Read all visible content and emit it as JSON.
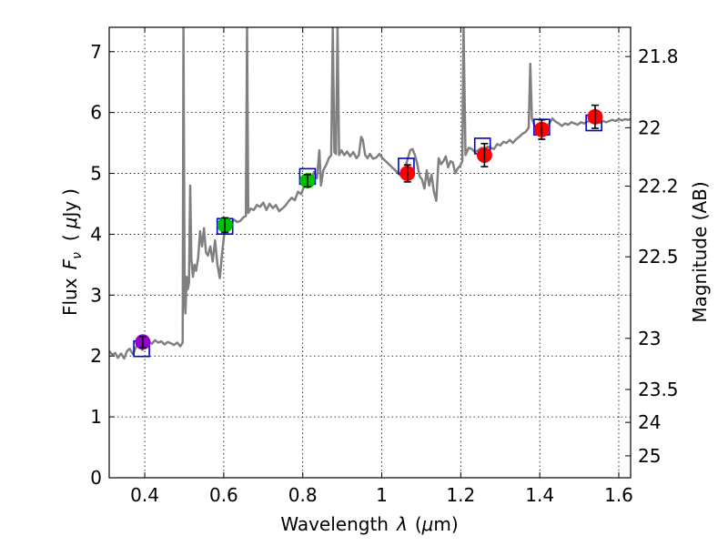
{
  "chart_data": {
    "type": "scatter",
    "xlabel_text": "Wavelength",
    "xlabel_symbol": "λ",
    "xlabel_unit_open": "(",
    "xlabel_unit_mu": "μ",
    "xlabel_unit_rest": "m)",
    "ylabel_text": "Flux",
    "ylabel_symbol_main": "F",
    "ylabel_symbol_sub": "ν",
    "ylabel_unit_open": "(",
    "ylabel_unit_mu": "μ",
    "ylabel_unit_rest": "Jy",
    "ylabel_unit_close": ")",
    "ylabel_right": "Magnitude (AB)",
    "xlim": [
      0.31,
      1.63
    ],
    "ylim": [
      0,
      7.4
    ],
    "x_ticks": [
      0.4,
      0.6,
      0.8,
      1,
      1.2,
      1.4,
      1.6
    ],
    "x_tick_labels": [
      "0.4",
      "0.6",
      "0.8",
      "1",
      "1.2",
      "1.4",
      "1.6"
    ],
    "y_ticks": [
      0,
      1,
      2,
      3,
      4,
      5,
      6,
      7
    ],
    "y_tick_labels": [
      "0",
      "1",
      "2",
      "3",
      "4",
      "5",
      "6",
      "7"
    ],
    "mag_ticks": [
      {
        "label": "21.8",
        "flux": 6.92
      },
      {
        "label": "22",
        "flux": 5.75
      },
      {
        "label": "22.2",
        "flux": 4.79
      },
      {
        "label": "22.5",
        "flux": 3.63
      },
      {
        "label": "23",
        "flux": 2.29
      },
      {
        "label": "23.5",
        "flux": 1.45
      },
      {
        "label": "24",
        "flux": 0.91
      },
      {
        "label": "25",
        "flux": 0.36
      }
    ],
    "grid": true,
    "observed": [
      {
        "x": 0.395,
        "y": 2.23,
        "err": 0.09,
        "color": "#9400d3"
      },
      {
        "x": 0.603,
        "y": 4.15,
        "err": 0.12,
        "color": "#00c000"
      },
      {
        "x": 0.812,
        "y": 4.88,
        "err": 0.1,
        "color": "#00c000"
      },
      {
        "x": 1.065,
        "y": 5.0,
        "err": 0.14,
        "color": "#ff0000"
      },
      {
        "x": 1.26,
        "y": 5.3,
        "err": 0.19,
        "color": "#ff0000"
      },
      {
        "x": 1.405,
        "y": 5.72,
        "err": 0.16,
        "color": "#ff0000"
      },
      {
        "x": 1.54,
        "y": 5.93,
        "err": 0.19,
        "color": "#ff0000"
      }
    ],
    "model_photometry": [
      {
        "x": 0.392,
        "y": 2.12
      },
      {
        "x": 0.603,
        "y": 4.13
      },
      {
        "x": 0.812,
        "y": 4.95
      },
      {
        "x": 1.062,
        "y": 5.12
      },
      {
        "x": 1.255,
        "y": 5.45
      },
      {
        "x": 1.405,
        "y": 5.76
      },
      {
        "x": 1.537,
        "y": 5.83
      }
    ],
    "spectrum": [
      [
        0.31,
        2.08
      ],
      [
        0.318,
        2.02
      ],
      [
        0.325,
        2.05
      ],
      [
        0.332,
        1.97
      ],
      [
        0.34,
        2.04
      ],
      [
        0.348,
        1.96
      ],
      [
        0.355,
        2.08
      ],
      [
        0.362,
        2.12
      ],
      [
        0.37,
        2.03
      ],
      [
        0.378,
        2.15
      ],
      [
        0.386,
        2.18
      ],
      [
        0.394,
        2.1
      ],
      [
        0.402,
        2.22
      ],
      [
        0.41,
        2.24
      ],
      [
        0.418,
        2.2
      ],
      [
        0.426,
        2.26
      ],
      [
        0.434,
        2.22
      ],
      [
        0.442,
        2.24
      ],
      [
        0.45,
        2.19
      ],
      [
        0.458,
        2.23
      ],
      [
        0.466,
        2.21
      ],
      [
        0.474,
        2.18
      ],
      [
        0.482,
        2.22
      ],
      [
        0.49,
        2.16
      ],
      [
        0.496,
        2.22
      ],
      [
        0.498,
        7.4
      ],
      [
        0.501,
        2.95
      ],
      [
        0.503,
        2.7
      ],
      [
        0.506,
        3.3
      ],
      [
        0.509,
        3.1
      ],
      [
        0.512,
        3.2
      ],
      [
        0.515,
        4.8
      ],
      [
        0.518,
        3.6
      ],
      [
        0.522,
        3.3
      ],
      [
        0.526,
        3.5
      ],
      [
        0.53,
        3.4
      ],
      [
        0.535,
        3.6
      ],
      [
        0.54,
        4.05
      ],
      [
        0.545,
        3.8
      ],
      [
        0.55,
        4.1
      ],
      [
        0.555,
        3.7
      ],
      [
        0.56,
        3.65
      ],
      [
        0.566,
        3.8
      ],
      [
        0.572,
        3.55
      ],
      [
        0.578,
        3.9
      ],
      [
        0.584,
        3.5
      ],
      [
        0.59,
        3.28
      ],
      [
        0.596,
        3.7
      ],
      [
        0.602,
        4.05
      ],
      [
        0.61,
        4.2
      ],
      [
        0.618,
        4.18
      ],
      [
        0.626,
        4.24
      ],
      [
        0.634,
        4.2
      ],
      [
        0.642,
        4.22
      ],
      [
        0.65,
        4.28
      ],
      [
        0.656,
        4.3
      ],
      [
        0.659,
        7.4
      ],
      [
        0.662,
        4.35
      ],
      [
        0.668,
        4.42
      ],
      [
        0.676,
        4.4
      ],
      [
        0.684,
        4.48
      ],
      [
        0.692,
        4.45
      ],
      [
        0.7,
        4.52
      ],
      [
        0.708,
        4.4
      ],
      [
        0.716,
        4.5
      ],
      [
        0.724,
        4.43
      ],
      [
        0.732,
        4.48
      ],
      [
        0.74,
        4.38
      ],
      [
        0.748,
        4.42
      ],
      [
        0.756,
        4.47
      ],
      [
        0.764,
        4.54
      ],
      [
        0.772,
        4.6
      ],
      [
        0.78,
        4.56
      ],
      [
        0.788,
        4.7
      ],
      [
        0.796,
        4.66
      ],
      [
        0.804,
        4.8
      ],
      [
        0.812,
        4.85
      ],
      [
        0.82,
        4.86
      ],
      [
        0.828,
        5.02
      ],
      [
        0.836,
        4.92
      ],
      [
        0.842,
        5.38
      ],
      [
        0.846,
        4.8
      ],
      [
        0.852,
        5.05
      ],
      [
        0.86,
        5.15
      ],
      [
        0.866,
        5.25
      ],
      [
        0.872,
        5.3
      ],
      [
        0.876,
        7.4
      ],
      [
        0.88,
        5.35
      ],
      [
        0.884,
        5.32
      ],
      [
        0.888,
        7.4
      ],
      [
        0.892,
        5.3
      ],
      [
        0.898,
        5.38
      ],
      [
        0.905,
        5.3
      ],
      [
        0.912,
        5.36
      ],
      [
        0.92,
        5.28
      ],
      [
        0.928,
        5.35
      ],
      [
        0.936,
        5.25
      ],
      [
        0.942,
        5.3
      ],
      [
        0.948,
        5.6
      ],
      [
        0.952,
        5.55
      ],
      [
        0.958,
        5.3
      ],
      [
        0.964,
        5.25
      ],
      [
        0.97,
        5.32
      ],
      [
        0.978,
        5.24
      ],
      [
        0.986,
        5.26
      ],
      [
        0.994,
        5.32
      ],
      [
        1.002,
        5.25
      ],
      [
        1.01,
        5.2
      ],
      [
        1.018,
        5.15
      ],
      [
        1.026,
        5.1
      ],
      [
        1.034,
        5.05
      ],
      [
        1.042,
        5.0
      ],
      [
        1.05,
        4.95
      ],
      [
        1.058,
        5.05
      ],
      [
        1.066,
        5.25
      ],
      [
        1.072,
        5.38
      ],
      [
        1.078,
        5.4
      ],
      [
        1.084,
        5.3
      ],
      [
        1.09,
        5.15
      ],
      [
        1.096,
        4.95
      ],
      [
        1.102,
        4.9
      ],
      [
        1.108,
        4.75
      ],
      [
        1.114,
        5.05
      ],
      [
        1.12,
        4.8
      ],
      [
        1.126,
        4.98
      ],
      [
        1.132,
        4.7
      ],
      [
        1.138,
        4.55
      ],
      [
        1.144,
        5.25
      ],
      [
        1.15,
        5.15
      ],
      [
        1.156,
        5.2
      ],
      [
        1.162,
        5.28
      ],
      [
        1.168,
        5.1
      ],
      [
        1.174,
        5.2
      ],
      [
        1.18,
        5.18
      ],
      [
        1.186,
        5.0
      ],
      [
        1.192,
        5.08
      ],
      [
        1.198,
        5.12
      ],
      [
        1.204,
        5.2
      ],
      [
        1.207,
        7.4
      ],
      [
        1.212,
        5.3
      ],
      [
        1.22,
        5.42
      ],
      [
        1.228,
        5.4
      ],
      [
        1.236,
        5.35
      ],
      [
        1.244,
        5.38
      ],
      [
        1.252,
        5.42
      ],
      [
        1.26,
        5.4
      ],
      [
        1.268,
        5.44
      ],
      [
        1.276,
        5.42
      ],
      [
        1.284,
        5.4
      ],
      [
        1.292,
        5.48
      ],
      [
        1.3,
        5.46
      ],
      [
        1.308,
        5.52
      ],
      [
        1.316,
        5.5
      ],
      [
        1.324,
        5.55
      ],
      [
        1.332,
        5.5
      ],
      [
        1.34,
        5.56
      ],
      [
        1.348,
        5.6
      ],
      [
        1.356,
        5.65
      ],
      [
        1.364,
        5.68
      ],
      [
        1.372,
        5.75
      ],
      [
        1.376,
        6.8
      ],
      [
        1.38,
        5.9
      ],
      [
        1.386,
        5.8
      ],
      [
        1.392,
        5.75
      ],
      [
        1.4,
        5.78
      ],
      [
        1.408,
        5.75
      ],
      [
        1.416,
        5.78
      ],
      [
        1.424,
        5.82
      ],
      [
        1.432,
        5.9
      ],
      [
        1.44,
        5.85
      ],
      [
        1.448,
        5.82
      ],
      [
        1.456,
        5.78
      ],
      [
        1.464,
        5.82
      ],
      [
        1.472,
        5.8
      ],
      [
        1.48,
        5.84
      ],
      [
        1.488,
        5.82
      ],
      [
        1.496,
        5.8
      ],
      [
        1.504,
        5.84
      ],
      [
        1.512,
        5.82
      ],
      [
        1.52,
        5.85
      ],
      [
        1.528,
        5.86
      ],
      [
        1.536,
        5.84
      ],
      [
        1.544,
        5.86
      ],
      [
        1.552,
        5.83
      ],
      [
        1.56,
        5.86
      ],
      [
        1.568,
        5.84
      ],
      [
        1.576,
        5.86
      ],
      [
        1.584,
        5.88
      ],
      [
        1.592,
        5.86
      ],
      [
        1.6,
        5.89
      ],
      [
        1.608,
        5.87
      ],
      [
        1.616,
        5.89
      ],
      [
        1.624,
        5.88
      ],
      [
        1.63,
        5.89
      ]
    ],
    "spectrum_color": "#808080",
    "model_marker_color": "#0000cc"
  }
}
